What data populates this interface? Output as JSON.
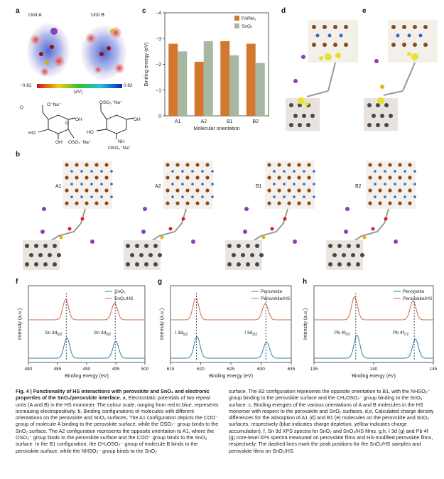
{
  "panels": {
    "a": {
      "label": "a",
      "unit_a": "Unit A",
      "unit_b": "Unit B",
      "scale_min": "−0.82",
      "scale_max": "0.82",
      "scale_unit": "(eV)",
      "chem": [
        "O",
        "O⁻Na⁺",
        "HO",
        "OH",
        "OH",
        "OSO₃⁻Na⁺",
        "OSO₃⁻Na⁺",
        "HO",
        "OH",
        "NH",
        "OSO₃⁻Na⁺",
        "O"
      ]
    },
    "b": {
      "label": "b",
      "configs": [
        "A1",
        "A2",
        "B1",
        "B2"
      ]
    },
    "c": {
      "label": "c"
    },
    "d": {
      "label": "d"
    },
    "e": {
      "label": "e"
    },
    "f": {
      "label": "f",
      "peak_left": "Sn 3d",
      "peak_left_sub": "5/2",
      "peak_right": "Sn 3d",
      "peak_right_sub": "3/2"
    },
    "g": {
      "label": "g",
      "peak_left": "I 3d",
      "peak_left_sub": "5/2",
      "peak_right": "I 3d",
      "peak_right_sub": "3/2"
    },
    "h": {
      "label": "h",
      "peak_left": "Pb 4f",
      "peak_left_sub": "5/2",
      "peak_right": "Pb 4f",
      "peak_right_sub": "7/2"
    }
  },
  "colors": {
    "fapbi3_bar": "#d2782f",
    "sno2_bar": "#a6b8a1",
    "curve_red": "#cf6a4a",
    "curve_blue": "#2f7fa6"
  },
  "chart_data": [
    {
      "type": "bar",
      "panel": "c",
      "categories": [
        "A1",
        "A2",
        "B1",
        "B2"
      ],
      "series": [
        {
          "name": "FAPbI₃",
          "values": [
            -2.8,
            -2.1,
            -2.9,
            -2.8
          ]
        },
        {
          "name": "SnO₂",
          "values": [
            -2.5,
            -2.9,
            -2.35,
            -2.05
          ]
        }
      ],
      "xlabel": "Molecular orientation",
      "ylabel": "Binding energy (eV)",
      "ylim": [
        -4,
        0
      ],
      "yticks": [
        "−4",
        "−3",
        "−2",
        "−1",
        "0"
      ],
      "legend": "top-right"
    },
    {
      "type": "line",
      "panel": "f",
      "xlabel": "Binding energy (eV)",
      "ylabel": "Intensity (a.u.)",
      "xlim": [
        480,
        500
      ],
      "xticks": [
        "480",
        "485",
        "490",
        "495",
        "500"
      ],
      "series": [
        {
          "name": "SnO₂",
          "peaks": [
            486.6,
            495.0
          ]
        },
        {
          "name": "SnO₂/HS",
          "peaks": [
            486.4,
            494.8
          ]
        }
      ],
      "dashed_lines": [
        486.5,
        494.9
      ],
      "legend": "top-right"
    },
    {
      "type": "line",
      "panel": "g",
      "xlabel": "Binding energy (eV)",
      "ylabel": "Intensity (a.u.)",
      "xlim": [
        615,
        635
      ],
      "xticks": [
        "615",
        "620",
        "625",
        "630",
        "635"
      ],
      "series": [
        {
          "name": "Perovskite",
          "peaks": [
            619.4,
            630.9
          ]
        },
        {
          "name": "Perovskite/HS",
          "peaks": [
            619.2,
            630.7
          ]
        }
      ],
      "dashed_lines": [
        619.3,
        630.8
      ],
      "legend": "top-right"
    },
    {
      "type": "line",
      "panel": "h",
      "xlabel": "Binding energy (eV)",
      "ylabel": "Intensity (a.u.)",
      "xlim": [
        135,
        145
      ],
      "xticks": [
        "135",
        "140",
        "145"
      ],
      "series": [
        {
          "name": "Perovskite",
          "peaks": [
            138.6,
            143.5
          ]
        },
        {
          "name": "Perovskite/HS",
          "peaks": [
            138.4,
            143.3
          ]
        }
      ],
      "dashed_lines": [
        138.5,
        143.4
      ],
      "legend": "top-right"
    }
  ],
  "caption": {
    "fig": "Fig. 4 | Functionality of HS interactions with perovskite and SnO₂ and electronic properties of the SnO₂/perovskite interface.",
    "left": "a, Electrostatic potentials of two repeat units (A and B) in the HS monomer. The colour scale, ranging from red to blue, represents increasing electropositivity. b, Binding configurations of molecules with different orientations on the perovskite and SnO₂ surfaces. The A1 configuration depicts the COO⁻ group of molecule A binding to the perovskite surface, while the OSO₃⁻ group binds to the SnO₂ surface. The A2 configuration represents the opposite orientation to A1, where the OSO₃⁻ group binds to the perovskite surface and the COO⁻ group binds to the SnO₂ surface. In the B1 configuration, the CH₂OSO₃⁻ group of molecule B binds to the perovskite surface, while the NHSO₃⁻ group binds to the SnO₂",
    "right": "surface. The B2 configuration represents the opposite orientation to B1, with the NHSO₃⁻ group binding to the perovskite surface and the CH₂OSO₃⁻ group binding to the SnO₂ surface. c, Binding energies of the various orientations of A and B molecules in the HS monomer with respect to the perovskite and SnO₂ surfaces. d,e, Calculated charge density differences for the adsorption of A1 (d) and B1 (e) molecules on the perovskite and SnO₂ surfaces, respectively (blue indicates charge depletion, yellow indicates charge accumulation). f, Sn 3d XPS spectra for SnO₂ and SnO₂/HS films. g,h, I 3d (g) and Pb 4f (g) core-level XPs spectra measured on perovskite films and HS-modified perovskite films, respectively. The dashed lines mark the peak positions for the SnO₂/HS samples and perovskite films on SnO₂/HS."
  }
}
